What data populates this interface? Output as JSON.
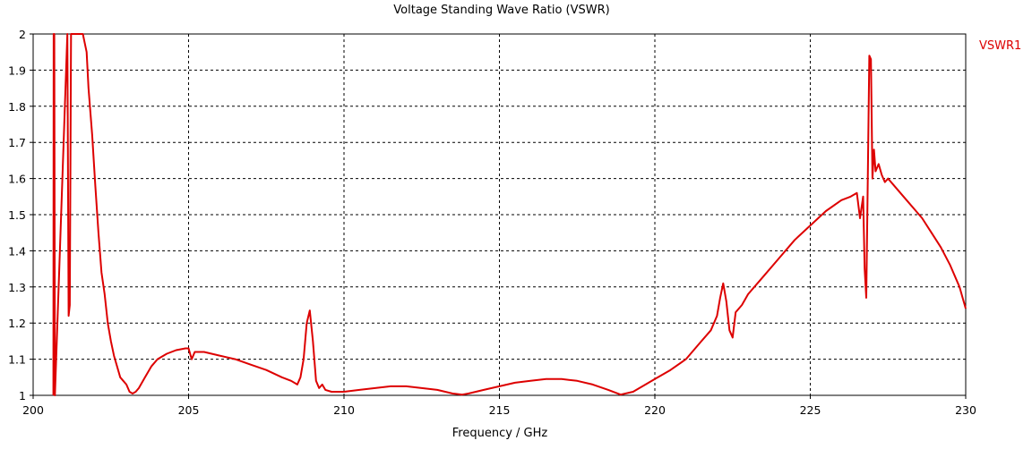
{
  "chart_data": {
    "type": "line",
    "title": "Voltage Standing Wave Ratio (VSWR)",
    "xlabel": "Frequency / GHz",
    "ylabel": "",
    "xlim": [
      200,
      230
    ],
    "ylim": [
      1,
      2
    ],
    "xticks": [
      "200",
      "205",
      "210",
      "215",
      "220",
      "225",
      "230"
    ],
    "yticks": [
      "1",
      "1.1",
      "1.2",
      "1.3",
      "1.4",
      "1.5",
      "1.6",
      "1.7",
      "1.8",
      "1.9",
      "2"
    ],
    "grid": true,
    "legend_position": "top-right",
    "series": [
      {
        "name": "VSWR1",
        "color": "#dd0000",
        "x": [
          200.65,
          200.66,
          200.68,
          200.7,
          201.1,
          201.14,
          201.18,
          201.22,
          201.26,
          201.6,
          201.72,
          201.78,
          201.9,
          202.0,
          202.1,
          202.2,
          202.3,
          202.4,
          202.5,
          202.6,
          202.7,
          202.8,
          202.9,
          203.0,
          203.1,
          203.2,
          203.3,
          203.4,
          203.6,
          203.8,
          204.0,
          204.3,
          204.6,
          204.9,
          205.0,
          205.1,
          205.2,
          205.3,
          205.5,
          206.0,
          206.5,
          207.0,
          207.5,
          208.0,
          208.3,
          208.5,
          208.6,
          208.7,
          208.8,
          208.9,
          209.0,
          209.1,
          209.2,
          209.3,
          209.4,
          209.6,
          209.8,
          210.0,
          210.5,
          211.0,
          211.5,
          212.0,
          212.5,
          213.0,
          213.5,
          213.8,
          214.0,
          214.5,
          215.0,
          215.5,
          216.0,
          216.5,
          217.0,
          217.5,
          218.0,
          218.5,
          218.9,
          219.3,
          219.7,
          220.0,
          220.5,
          221.0,
          221.5,
          221.8,
          222.0,
          222.1,
          222.2,
          222.3,
          222.4,
          222.5,
          222.6,
          222.8,
          223.0,
          223.5,
          224.0,
          224.5,
          225.0,
          225.5,
          226.0,
          226.3,
          226.5,
          226.6,
          226.7,
          226.75,
          226.8,
          226.85,
          226.9,
          226.95,
          227.0,
          227.05,
          227.1,
          227.2,
          227.3,
          227.4,
          227.5,
          227.7,
          228.0,
          228.3,
          228.6,
          228.9,
          229.2,
          229.5,
          229.8,
          230.0
        ],
        "y": [
          1.0,
          2.0,
          2.0,
          1.0,
          2.0,
          1.22,
          1.25,
          2.0,
          2.0,
          2.0,
          1.95,
          1.85,
          1.72,
          1.58,
          1.45,
          1.34,
          1.28,
          1.2,
          1.15,
          1.11,
          1.08,
          1.05,
          1.04,
          1.03,
          1.01,
          1.005,
          1.01,
          1.02,
          1.05,
          1.08,
          1.1,
          1.115,
          1.125,
          1.13,
          1.13,
          1.1,
          1.12,
          1.12,
          1.12,
          1.11,
          1.1,
          1.085,
          1.07,
          1.05,
          1.04,
          1.03,
          1.05,
          1.1,
          1.2,
          1.235,
          1.15,
          1.04,
          1.02,
          1.03,
          1.015,
          1.01,
          1.01,
          1.01,
          1.015,
          1.02,
          1.025,
          1.025,
          1.02,
          1.015,
          1.005,
          1.002,
          1.005,
          1.015,
          1.025,
          1.035,
          1.04,
          1.045,
          1.045,
          1.04,
          1.03,
          1.015,
          1.002,
          1.01,
          1.03,
          1.045,
          1.07,
          1.1,
          1.15,
          1.18,
          1.22,
          1.27,
          1.31,
          1.26,
          1.18,
          1.16,
          1.23,
          1.25,
          1.28,
          1.33,
          1.38,
          1.43,
          1.47,
          1.51,
          1.54,
          1.55,
          1.56,
          1.49,
          1.55,
          1.35,
          1.27,
          1.6,
          1.94,
          1.93,
          1.6,
          1.68,
          1.62,
          1.64,
          1.61,
          1.59,
          1.6,
          1.58,
          1.55,
          1.52,
          1.49,
          1.45,
          1.41,
          1.36,
          1.3,
          1.24
        ]
      }
    ]
  }
}
